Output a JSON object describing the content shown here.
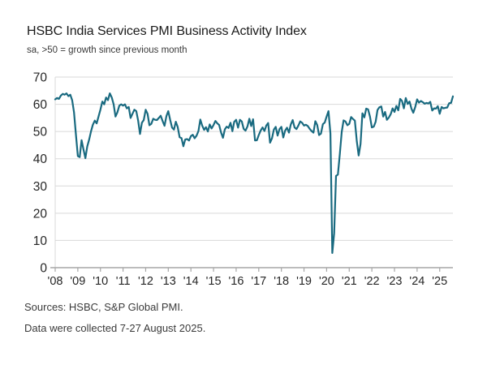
{
  "header": {
    "title": "HSBC India Services PMI Business Activity Index",
    "subtitle": "sa, >50 = growth since previous month"
  },
  "footer": {
    "sources": "Sources: HSBC, S&P Global PMI.",
    "collection": "Data were collected 7-27 August 2025."
  },
  "colors": {
    "line": "#196a80",
    "grid": "#d9d9d9",
    "axis": "#a6a6a6",
    "text": "#262626"
  },
  "chart_data": {
    "type": "line",
    "title": "HSBC India Services PMI Business Activity Index",
    "subtitle": "sa, >50 = growth since previous month",
    "xlabel": "",
    "ylabel": "",
    "legend": "none",
    "grid": "horizontal",
    "ylim": [
      0,
      70
    ],
    "y_ticks": [
      0,
      10,
      20,
      30,
      40,
      50,
      60,
      70
    ],
    "x_tick_labels": [
      "'08",
      "'09",
      "'10",
      "'11",
      "'12",
      "'13",
      "'14",
      "'15",
      "'16",
      "'17",
      "'18",
      "'19",
      "'20",
      "'21",
      "'22",
      "'23",
      "'24",
      "'25"
    ],
    "x_start": "2008-01",
    "x_end": "2025-08",
    "frequency": "monthly",
    "reference_level": 50,
    "series": [
      {
        "name": "Services PMI Business Activity Index (sa)",
        "values": [
          61.8,
          62.3,
          62.0,
          63.2,
          63.8,
          63.5,
          64.0,
          63.0,
          63.5,
          61.5,
          57.0,
          49.0,
          41.0,
          40.6,
          46.8,
          43.5,
          40.2,
          44.5,
          47.0,
          50.0,
          52.5,
          54.0,
          53.0,
          55.5,
          58.0,
          61.0,
          60.0,
          62.5,
          61.5,
          64.0,
          62.5,
          60.0,
          55.5,
          57.0,
          59.5,
          60.0,
          59.5,
          60.0,
          58.5,
          59.0,
          55.0,
          56.5,
          58.0,
          57.5,
          54.0,
          49.1,
          53.2,
          54.2,
          58.0,
          56.5,
          52.3,
          52.8,
          54.7,
          54.3,
          54.2,
          55.0,
          55.8,
          53.8,
          52.1,
          55.6,
          57.5,
          54.2,
          51.4,
          50.7,
          53.6,
          51.7,
          47.9,
          47.6,
          44.6,
          47.1,
          47.2,
          46.7,
          48.3,
          48.8,
          47.5,
          48.5,
          50.2,
          54.4,
          52.2,
          50.6,
          51.6,
          50.0,
          52.6,
          51.1,
          52.4,
          53.9,
          53.0,
          52.4,
          49.6,
          47.7,
          50.8,
          51.8,
          51.3,
          53.2,
          50.1,
          53.6,
          54.3,
          51.4,
          54.3,
          53.7,
          51.0,
          50.3,
          51.9,
          54.7,
          52.0,
          54.5,
          46.7,
          46.8,
          48.7,
          50.3,
          51.5,
          50.2,
          52.2,
          53.1,
          45.9,
          47.5,
          50.7,
          51.7,
          48.5,
          50.9,
          51.7,
          47.8,
          50.3,
          51.4,
          49.6,
          52.6,
          54.2,
          51.5,
          50.9,
          52.2,
          53.7,
          53.2,
          52.2,
          52.5,
          52.0,
          51.0,
          50.2,
          49.6,
          53.8,
          52.4,
          48.7,
          49.2,
          52.7,
          53.3,
          55.5,
          57.5,
          49.3,
          5.4,
          12.6,
          33.7,
          34.2,
          41.8,
          49.8,
          54.1,
          53.7,
          52.3,
          52.8,
          55.3,
          54.6,
          54.0,
          46.4,
          41.2,
          45.4,
          56.7,
          55.2,
          58.4,
          58.1,
          55.5,
          51.5,
          51.8,
          53.6,
          57.9,
          58.9,
          59.2,
          55.5,
          57.2,
          54.3,
          55.1,
          56.4,
          58.5,
          57.2,
          59.4,
          57.8,
          62.0,
          61.2,
          58.5,
          62.3,
          60.1,
          61.0,
          58.4,
          56.9,
          59.0,
          61.8,
          60.6,
          61.2,
          60.8,
          60.2,
          60.5,
          60.3,
          60.9,
          57.7,
          58.5,
          58.4,
          59.3,
          56.5,
          59.0,
          58.5,
          58.7,
          58.8,
          60.4,
          60.5,
          62.9
        ]
      }
    ]
  }
}
